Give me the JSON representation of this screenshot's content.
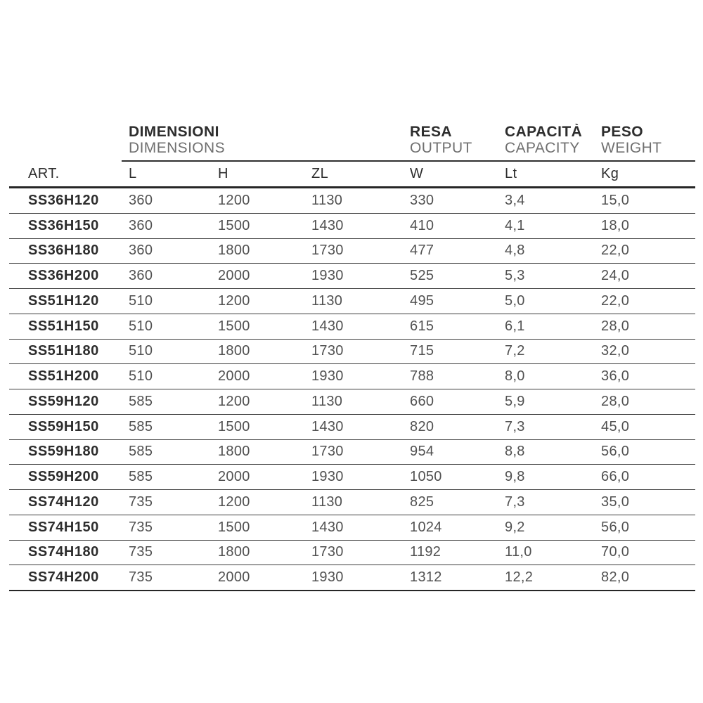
{
  "table": {
    "groups": [
      {
        "line1": "DIMENSIONI",
        "line2": "DIMENSIONS"
      },
      {
        "line1": "RESA",
        "line2": "OUTPUT"
      },
      {
        "line1": "CAPACITÀ",
        "line2": "CAPACITY"
      },
      {
        "line1": "PESO",
        "line2": "WEIGHT"
      }
    ],
    "columns": [
      "ART.",
      "L",
      "H",
      "ZL",
      "W",
      "Lt",
      "Kg"
    ],
    "rows": [
      {
        "art": "SS36H120",
        "l": "360",
        "h": "1200",
        "zl": "1130",
        "w": "330",
        "lt": "3,4",
        "kg": "15,0"
      },
      {
        "art": "SS36H150",
        "l": "360",
        "h": "1500",
        "zl": "1430",
        "w": "410",
        "lt": "4,1",
        "kg": "18,0"
      },
      {
        "art": "SS36H180",
        "l": "360",
        "h": "1800",
        "zl": "1730",
        "w": "477",
        "lt": "4,8",
        "kg": "22,0"
      },
      {
        "art": "SS36H200",
        "l": "360",
        "h": "2000",
        "zl": "1930",
        "w": "525",
        "lt": "5,3",
        "kg": "24,0"
      },
      {
        "art": "SS51H120",
        "l": "510",
        "h": "1200",
        "zl": "1130",
        "w": "495",
        "lt": "5,0",
        "kg": "22,0"
      },
      {
        "art": "SS51H150",
        "l": "510",
        "h": "1500",
        "zl": "1430",
        "w": "615",
        "lt": "6,1",
        "kg": "28,0"
      },
      {
        "art": "SS51H180",
        "l": "510",
        "h": "1800",
        "zl": "1730",
        "w": "715",
        "lt": "7,2",
        "kg": "32,0"
      },
      {
        "art": "SS51H200",
        "l": "510",
        "h": "2000",
        "zl": "1930",
        "w": "788",
        "lt": "8,0",
        "kg": "36,0"
      },
      {
        "art": "SS59H120",
        "l": "585",
        "h": "1200",
        "zl": "1130",
        "w": "660",
        "lt": "5,9",
        "kg": "28,0"
      },
      {
        "art": "SS59H150",
        "l": "585",
        "h": "1500",
        "zl": "1430",
        "w": "820",
        "lt": "7,3",
        "kg": "45,0"
      },
      {
        "art": "SS59H180",
        "l": "585",
        "h": "1800",
        "zl": "1730",
        "w": "954",
        "lt": "8,8",
        "kg": "56,0"
      },
      {
        "art": "SS59H200",
        "l": "585",
        "h": "2000",
        "zl": "1930",
        "w": "1050",
        "lt": "9,8",
        "kg": "66,0"
      },
      {
        "art": "SS74H120",
        "l": "735",
        "h": "1200",
        "zl": "1130",
        "w": "825",
        "lt": "7,3",
        "kg": "35,0"
      },
      {
        "art": "SS74H150",
        "l": "735",
        "h": "1500",
        "zl": "1430",
        "w": "1024",
        "lt": "9,2",
        "kg": "56,0"
      },
      {
        "art": "SS74H180",
        "l": "735",
        "h": "1800",
        "zl": "1730",
        "w": "1192",
        "lt": "11,0",
        "kg": "70,0"
      },
      {
        "art": "SS74H200",
        "l": "735",
        "h": "2000",
        "zl": "1930",
        "w": "1312",
        "lt": "12,2",
        "kg": "82,0"
      }
    ]
  },
  "colors": {
    "text_dark": "#2d2d2d",
    "text_light": "#707070",
    "text_data": "#515151",
    "rule_thick": "#262626",
    "rule_thin": "#3d3d3d",
    "background": "#ffffff"
  }
}
